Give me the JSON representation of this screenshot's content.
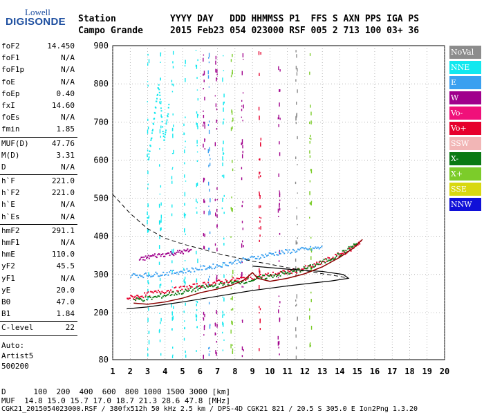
{
  "logo": {
    "line1": "Lowell",
    "line2": "DIGISONDE"
  },
  "header": {
    "row1": "Station          YYYY DAY   DDD HHMMSS P1  FFS S AXN PPS IGA PS",
    "row2": "Campo Grande     2015 Feb23 054 023000 RSF 005 2 713 100 03+ 36"
  },
  "params": {
    "group1": [
      {
        "k": "foF2",
        "v": "14.450"
      },
      {
        "k": "foF1",
        "v": "N/A"
      },
      {
        "k": "foF1p",
        "v": "N/A"
      },
      {
        "k": "foE",
        "v": "N/A"
      },
      {
        "k": "foEp",
        "v": "0.40"
      },
      {
        "k": "fxI",
        "v": "14.60"
      },
      {
        "k": "foEs",
        "v": "N/A"
      },
      {
        "k": "fmin",
        "v": "1.85"
      }
    ],
    "group2": [
      {
        "k": "MUF(D)",
        "v": "47.76"
      },
      {
        "k": "M(D)",
        "v": "3.31"
      },
      {
        "k": "D",
        "v": "N/A"
      }
    ],
    "group3": [
      {
        "k": "h`F",
        "v": "221.0"
      },
      {
        "k": "h`F2",
        "v": "221.0"
      },
      {
        "k": "h`E",
        "v": "N/A"
      },
      {
        "k": "h`Es",
        "v": "N/A"
      }
    ],
    "group4": [
      {
        "k": "hmF2",
        "v": "291.1"
      },
      {
        "k": "hmF1",
        "v": "N/A"
      },
      {
        "k": "hmE",
        "v": "110.0"
      },
      {
        "k": "yF2",
        "v": "45.5"
      },
      {
        "k": "yF1",
        "v": "N/A"
      },
      {
        "k": "yE",
        "v": "20.0"
      },
      {
        "k": "B0",
        "v": "47.0"
      },
      {
        "k": "B1",
        "v": "1.84"
      }
    ],
    "group5": [
      {
        "k": "C-level",
        "v": "22"
      }
    ],
    "auto": [
      "Auto:",
      "Artist5",
      "500200"
    ]
  },
  "legend": [
    {
      "label": "NoVal",
      "color": "#8c8c8c"
    },
    {
      "label": "NNE",
      "color": "#12e8ef"
    },
    {
      "label": "E",
      "color": "#3aa0f0"
    },
    {
      "label": "W",
      "color": "#a0008c"
    },
    {
      "label": "Vo-",
      "color": "#f0107a"
    },
    {
      "label": "Vo+",
      "color": "#e6002c"
    },
    {
      "label": "SSW",
      "color": "#f2b6b6"
    },
    {
      "label": "X-",
      "color": "#0a7a14"
    },
    {
      "label": "X+",
      "color": "#7ccc2a"
    },
    {
      "label": "SSE",
      "color": "#d8d810"
    },
    {
      "label": "NNW",
      "color": "#1010d8"
    }
  ],
  "footer": {
    "line1": "D      100  200  400  600  800 1000 1500 3000 [km]",
    "line2": "MUF  14.8 15.0 15.7 17.0 18.7 21.3 28.6 47.8 [MHz]",
    "line3": "CGK21_2015054023000.RSF / 380fx512h 50 kHz 2.5 km / DPS-4D CGK21 821 / 20.5 S 305.0 E Ion2Png 1.3.20"
  },
  "chart_data": {
    "type": "scatter",
    "xlim": [
      1,
      20
    ],
    "ylim": [
      80,
      900
    ],
    "x_ticks": [
      "1",
      "2",
      "3",
      "4",
      "5",
      "6",
      "7",
      "8",
      "9",
      "10",
      "11",
      "12",
      "13",
      "14",
      "15",
      "16",
      "17",
      "18",
      "19",
      "20"
    ],
    "y_ticks": [
      "80",
      "200",
      "300",
      "400",
      "500",
      "600",
      "700",
      "800",
      "900"
    ],
    "grid": "dotted",
    "legend_position": "right",
    "series": [
      {
        "name": "E",
        "color": "#3aa0f0",
        "points": [
          [
            2.0,
            300
          ],
          [
            3.0,
            300
          ],
          [
            4.0,
            305
          ],
          [
            5.0,
            310
          ],
          [
            6.0,
            318
          ],
          [
            7.0,
            325
          ],
          [
            8.0,
            335
          ],
          [
            9.0,
            345
          ],
          [
            10.0,
            355
          ],
          [
            11.0,
            362
          ],
          [
            12.0,
            368
          ],
          [
            13.0,
            372
          ]
        ]
      },
      {
        "name": "Vo+",
        "color": "#e6002c",
        "points": [
          [
            1.8,
            240
          ],
          [
            2.5,
            245
          ],
          [
            3.5,
            255
          ],
          [
            4.5,
            262
          ],
          [
            5.5,
            270
          ],
          [
            6.5,
            278
          ],
          [
            7.5,
            285
          ],
          [
            8.5,
            292
          ],
          [
            9.5,
            298
          ],
          [
            10.5,
            305
          ],
          [
            11.5,
            312
          ],
          [
            12.5,
            325
          ],
          [
            13.5,
            345
          ],
          [
            14.5,
            365
          ],
          [
            15.2,
            390
          ]
        ]
      },
      {
        "name": "X-",
        "color": "#0a7a14",
        "points": [
          [
            2.2,
            235
          ],
          [
            3.2,
            240
          ],
          [
            4.2,
            250
          ],
          [
            5.2,
            258
          ],
          [
            6.2,
            268
          ],
          [
            7.2,
            275
          ],
          [
            8.2,
            282
          ],
          [
            9.2,
            290
          ],
          [
            10.2,
            300
          ],
          [
            11.2,
            308
          ],
          [
            12.2,
            320
          ],
          [
            13.2,
            338
          ],
          [
            14.2,
            360
          ],
          [
            15.0,
            385
          ]
        ]
      },
      {
        "name": "W",
        "color": "#a0008c",
        "points": [
          [
            2.5,
            340
          ],
          [
            3.2,
            350
          ],
          [
            4.0,
            355
          ],
          [
            4.8,
            360
          ],
          [
            5.5,
            365
          ]
        ]
      },
      {
        "name": "NNE",
        "color": "#12e8ef",
        "points": [
          [
            3.0,
            600
          ],
          [
            3.3,
            700
          ],
          [
            3.6,
            800
          ],
          [
            3.9,
            650
          ],
          [
            4.2,
            750
          ]
        ]
      }
    ],
    "model_profile": {
      "name": "",
      "points": [
        [
          1.8,
          210
        ],
        [
          3,
          215
        ],
        [
          5,
          228
        ],
        [
          7,
          243
        ],
        [
          9,
          258
        ],
        [
          11,
          270
        ],
        [
          12.5,
          278
        ],
        [
          13.5,
          283
        ],
        [
          14.5,
          290
        ],
        [
          14.2,
          300
        ],
        [
          13,
          308
        ],
        [
          11.5,
          312
        ],
        [
          10.5,
          316
        ],
        [
          9,
          322
        ]
      ]
    },
    "muf_curve": {
      "name": "",
      "points": [
        [
          1.0,
          510
        ],
        [
          2.0,
          460
        ],
        [
          3.0,
          420
        ],
        [
          4.0,
          395
        ],
        [
          5.0,
          380
        ],
        [
          6.0,
          368
        ],
        [
          7.0,
          355
        ],
        [
          8.0,
          345
        ],
        [
          9.0,
          335
        ],
        [
          10.0,
          327
        ],
        [
          11.0,
          318
        ],
        [
          12.0,
          310
        ],
        [
          13.0,
          302
        ],
        [
          14.0,
          295
        ],
        [
          14.5,
          290
        ]
      ]
    },
    "trace_line": {
      "name": "",
      "points": [
        [
          2.2,
          225
        ],
        [
          3.0,
          222
        ],
        [
          4.0,
          228
        ],
        [
          5.0,
          238
        ],
        [
          6.0,
          252
        ],
        [
          7.0,
          262
        ],
        [
          7.8,
          272
        ],
        [
          8.5,
          285
        ],
        [
          9.0,
          305
        ],
        [
          9.3,
          290
        ],
        [
          10.0,
          282
        ],
        [
          11.0,
          290
        ],
        [
          12.0,
          302
        ],
        [
          13.0,
          320
        ],
        [
          14.0,
          345
        ],
        [
          14.8,
          370
        ],
        [
          15.3,
          392
        ]
      ]
    },
    "vertical_streaks": [
      {
        "x": 3.0,
        "color": "#12e8ef"
      },
      {
        "x": 3.7,
        "color": "#12e8ef"
      },
      {
        "x": 4.4,
        "color": "#12e8ef"
      },
      {
        "x": 5.1,
        "color": "#12e8ef"
      },
      {
        "x": 5.8,
        "color": "#12e8ef"
      },
      {
        "x": 6.2,
        "color": "#a0008c"
      },
      {
        "x": 6.5,
        "color": "#3aa0f0"
      },
      {
        "x": 6.9,
        "color": "#a0008c"
      },
      {
        "x": 7.3,
        "color": "#12e8ef"
      },
      {
        "x": 7.8,
        "color": "#7ccc2a"
      },
      {
        "x": 8.4,
        "color": "#a0008c"
      },
      {
        "x": 9.4,
        "color": "#e6002c"
      },
      {
        "x": 10.5,
        "color": "#a0008c"
      },
      {
        "x": 11.5,
        "color": "#8c8c8c"
      },
      {
        "x": 12.3,
        "color": "#7ccc2a"
      }
    ]
  }
}
